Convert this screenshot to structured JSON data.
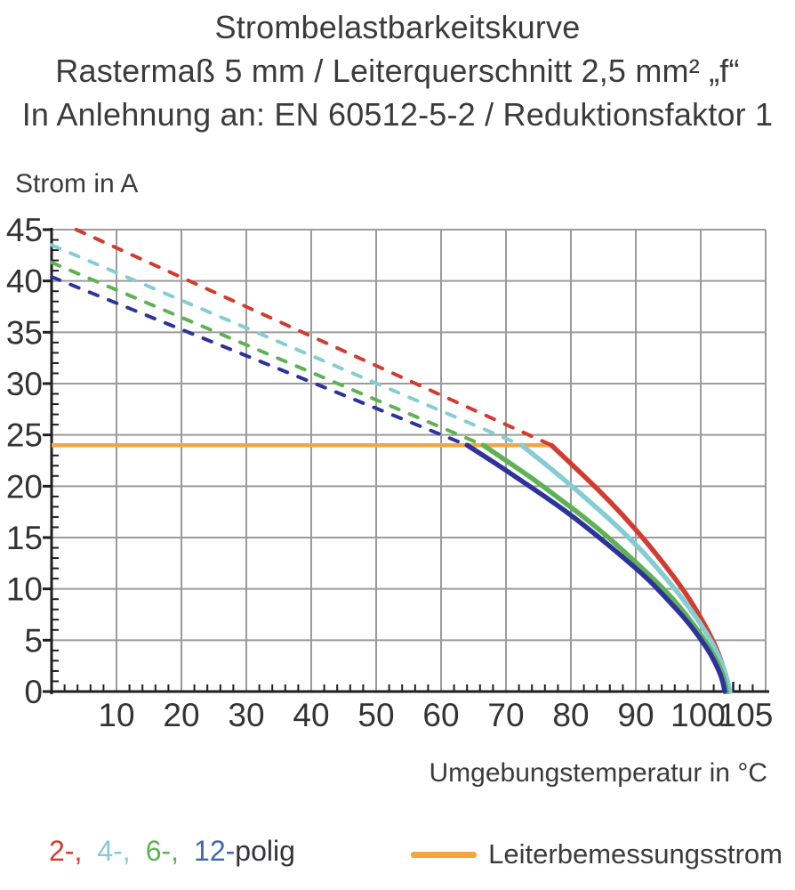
{
  "title": {
    "line1": "Strombelastbarkeitskurve",
    "line2": "Rastermaß 5 mm / Leiterquerschnitt 2,5 mm² „f“",
    "line3": "In Anlehnung an: EN 60512-5-2 / Reduktionsfaktor 1"
  },
  "chart_data": {
    "type": "line",
    "title": "Strombelastbarkeitskurve",
    "xlabel": "Umgebungstemperatur in °C",
    "ylabel": "Strom in A",
    "xlim": [
      0,
      110
    ],
    "ylim": [
      0,
      45
    ],
    "grid": true,
    "x_gridline_values": [
      10,
      20,
      30,
      40,
      50,
      60,
      70,
      80,
      90,
      100,
      110
    ],
    "y_gridline_values": [
      5,
      10,
      15,
      20,
      25,
      30,
      35,
      40,
      45
    ],
    "x_tick_labels": [
      10,
      20,
      30,
      40,
      50,
      60,
      70,
      80,
      90,
      100,
      105
    ],
    "y_tick_labels": [
      0,
      5,
      10,
      15,
      20,
      25,
      30,
      35,
      40,
      45
    ],
    "x_minor_tick_step": 2,
    "y_minor_tick_step": 1,
    "colors": {
      "grid": "#9b9b9b",
      "axis": "#1f1f1f",
      "tick_text": "#333333"
    },
    "reference_line": {
      "name": "Leiterbemessungsstrom",
      "y": 24,
      "x_start": 0,
      "x_end": 77,
      "color": "#f2a640"
    },
    "series": [
      {
        "name": "2-polig",
        "color": "#d23c30",
        "dashed_segment": [
          [
            3.8,
            45
          ],
          [
            77,
            24
          ]
        ],
        "solid_curve": [
          [
            77,
            24
          ],
          [
            80,
            22.2
          ],
          [
            84,
            19.8
          ],
          [
            88,
            17.2
          ],
          [
            92,
            14.3
          ],
          [
            95,
            11.9
          ],
          [
            98,
            9.3
          ],
          [
            100,
            7.2
          ],
          [
            101.8,
            5.1
          ],
          [
            103,
            3.3
          ],
          [
            103.9,
            1.5
          ],
          [
            104.3,
            0
          ]
        ]
      },
      {
        "name": "4-polig",
        "color": "#85ccd3",
        "dashed_segment": [
          [
            0,
            43.5
          ],
          [
            72.4,
            24
          ]
        ],
        "solid_curve": [
          [
            72.4,
            24
          ],
          [
            76,
            22.2
          ],
          [
            80,
            20.1
          ],
          [
            84,
            17.9
          ],
          [
            88,
            15.6
          ],
          [
            92,
            13.0
          ],
          [
            95,
            10.8
          ],
          [
            98,
            8.4
          ],
          [
            100.5,
            6.1
          ],
          [
            102,
            4.5
          ],
          [
            103.3,
            2.7
          ],
          [
            104,
            1.4
          ],
          [
            104.5,
            0
          ]
        ]
      },
      {
        "name": "6-polig",
        "color": "#5fb254",
        "dashed_segment": [
          [
            0,
            41.8
          ],
          [
            66.5,
            24
          ]
        ],
        "solid_curve": [
          [
            66.5,
            24
          ],
          [
            70,
            22.5
          ],
          [
            74,
            20.8
          ],
          [
            78,
            18.9
          ],
          [
            82,
            17.0
          ],
          [
            86,
            14.9
          ],
          [
            90,
            12.6
          ],
          [
            94,
            10.2
          ],
          [
            97,
            8.1
          ],
          [
            100,
            5.6
          ],
          [
            101.8,
            3.8
          ],
          [
            103,
            2.3
          ],
          [
            103.7,
            1.0
          ],
          [
            104,
            0
          ]
        ]
      },
      {
        "name": "12-polig",
        "color": "#2e339b",
        "dashed_segment": [
          [
            0,
            40.4
          ],
          [
            64,
            24
          ]
        ],
        "solid_curve": [
          [
            64,
            24
          ],
          [
            68,
            22.4
          ],
          [
            72,
            20.7
          ],
          [
            76,
            19.0
          ],
          [
            80,
            17.2
          ],
          [
            84,
            15.2
          ],
          [
            88,
            13.1
          ],
          [
            92,
            10.9
          ],
          [
            95,
            8.9
          ],
          [
            98,
            6.8
          ],
          [
            100,
            5.1
          ],
          [
            101.5,
            3.7
          ],
          [
            102.7,
            2.2
          ],
          [
            103.4,
            1.0
          ],
          [
            103.7,
            0
          ]
        ]
      }
    ]
  },
  "legend": {
    "poles": [
      {
        "label": "2-,",
        "color": "#d23c30"
      },
      {
        "label": "4-,",
        "color": "#85ccd3"
      },
      {
        "label": "6-,",
        "color": "#5fb254"
      },
      {
        "label": "12-",
        "color": "#3f68b0"
      },
      {
        "label": "polig",
        "color": "#33343a"
      }
    ],
    "reference": {
      "label": "Leiterbemessungsstrom",
      "swatch_color": "#f2a640"
    }
  }
}
